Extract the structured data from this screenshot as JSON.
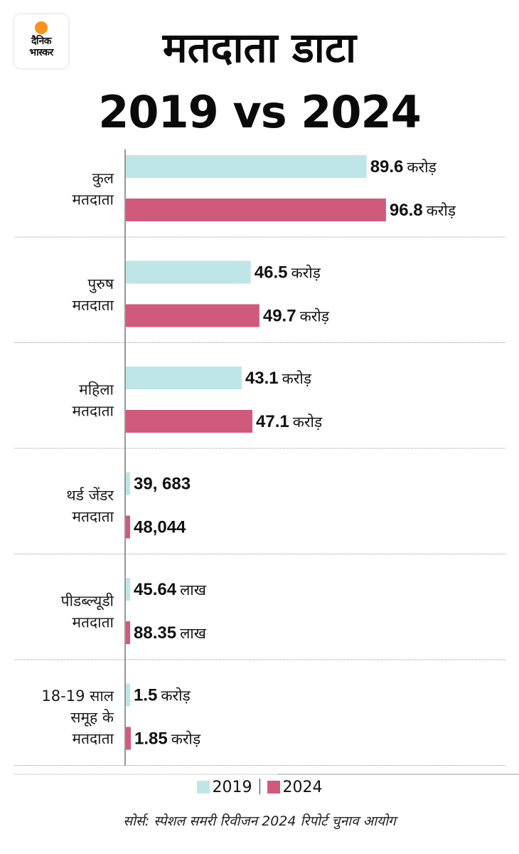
{
  "brand": {
    "name_line1": "दैनिक",
    "name_line2": "भास्कर",
    "dot_color": "#f7931e"
  },
  "header": {
    "title_line1": "मतदाता डाटा",
    "title_line2": "2019 vs 2024"
  },
  "chart_data": {
    "type": "bar",
    "orientation": "horizontal",
    "title": "मतदाता डाटा 2019 vs 2024",
    "xlabel": "",
    "ylabel": "",
    "grid": false,
    "legend_position": "bottom",
    "categories": [
      [
        "कुल",
        "मतदाता"
      ],
      [
        "पुरुष",
        "मतदाता"
      ],
      [
        "महिला",
        "मतदाता"
      ],
      [
        "थर्ड जेंडर",
        "मतदाता"
      ],
      [
        "पीडब्ल्यूडी",
        "मतदाता"
      ],
      [
        "18-19 साल",
        "समूह के",
        "मतदाता"
      ]
    ],
    "series": [
      {
        "name": "2019",
        "color": "#bfe6e6",
        "values_crore": [
          89.6,
          46.5,
          43.1,
          0.039683,
          0.4564,
          1.5
        ],
        "labels": [
          {
            "num": "89.6",
            "unit": "करोड़"
          },
          {
            "num": "46.5",
            "unit": "करोड़"
          },
          {
            "num": "43.1",
            "unit": "करोड़"
          },
          {
            "num": "39, 683",
            "unit": ""
          },
          {
            "num": "45.64",
            "unit": "लाख"
          },
          {
            "num": "1.5",
            "unit": "करोड़"
          }
        ]
      },
      {
        "name": "2024",
        "color": "#d05a7b",
        "values_crore": [
          96.8,
          49.7,
          47.1,
          0.048044,
          0.8835,
          1.85
        ],
        "labels": [
          {
            "num": "96.8",
            "unit": "करोड़"
          },
          {
            "num": "49.7",
            "unit": "करोड़"
          },
          {
            "num": "47.1",
            "unit": "करोड़"
          },
          {
            "num": "48,044",
            "unit": ""
          },
          {
            "num": "88.35",
            "unit": "लाख"
          },
          {
            "num": "1.85",
            "unit": "करोड़"
          }
        ]
      }
    ]
  },
  "legend": {
    "items": [
      {
        "label": "2019",
        "color": "#bfe6e6"
      },
      {
        "label": "2024",
        "color": "#d05a7b"
      }
    ]
  },
  "source": "सोर्स: स्पेशल समरी रिवीजन 2024 रिपोर्ट चुनाव आयोग"
}
